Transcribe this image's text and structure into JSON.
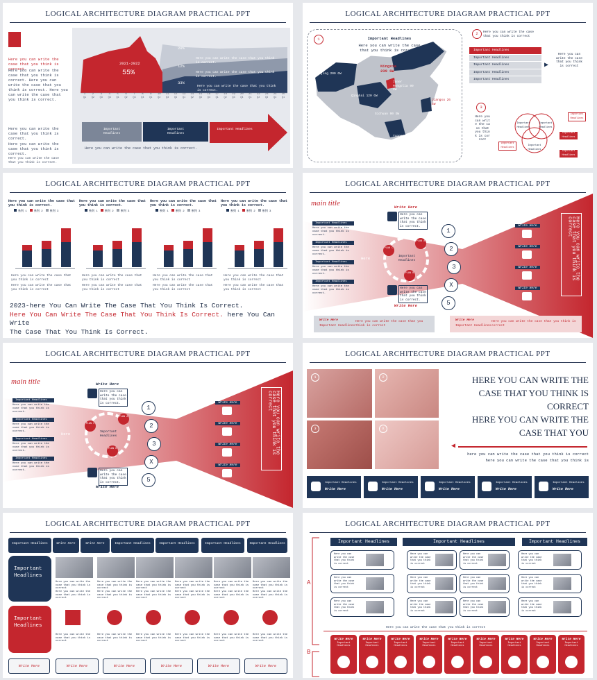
{
  "deck_title": "LOGICAL ARCHITECTURE DIAGRAM PRACTICAL PPT",
  "colors": {
    "navy": "#1f3556",
    "red": "#c4262e",
    "gray": "#9aa0aa",
    "bg": "#e6e8ec"
  },
  "common": {
    "write_here": "Write Here",
    "important_headlines": "Important Headlines",
    "placeholder_short": "Here you can write the case that you think is correct.",
    "placeholder_lower": "here you can write the case that you think is correct"
  },
  "slide1": {
    "left_text_red": "Here you can write the case that you think is correct.",
    "left_text_body": "Here you can write the case that you think is correct. Here you can write the case that you think is correct. Here you can write the case that you think is correct.",
    "left_text_2": "Here you can write the case that you think is correct.",
    "left_text_3": "Here you can write the case that you think is correct.",
    "left_text_4": "Here you can write the case that you think is correct.",
    "callout_label": "2021-2022",
    "callout_value": "55%",
    "band_labels": [
      "20%",
      "12%",
      "33%"
    ],
    "band_text": "Here you can write the case that you think is correct.",
    "x_labels": [
      "1",
      "2",
      "3",
      "4",
      "5",
      "6",
      "7",
      "8",
      "9",
      "10",
      "11",
      "12",
      "13",
      "14",
      "15",
      "16",
      "17",
      "18",
      "19",
      "20",
      "21",
      "22",
      "23",
      "24",
      "25"
    ],
    "q_labels": [
      "Q1",
      "Q2",
      "Q3",
      "Q4",
      "Q1",
      "Q2",
      "Q3",
      "Q4",
      "Q1",
      "Q2",
      "Q3",
      "Q4",
      "Q1",
      "Q2",
      "Q3",
      "Q4",
      "Q1",
      "Q2",
      "Q3",
      "Q4",
      "Q1",
      "Q2",
      "Q3",
      "Q4",
      "Q1"
    ],
    "buttons": [
      "Important Headlines",
      "Important Headlines",
      "Important Headlines"
    ],
    "footer": "Here you can write the case that you think is correct."
  },
  "slide2": {
    "map_heading": "Important Headlines",
    "map_sub": "Here you can write the case that you think is correct.",
    "num1": "1",
    "num2": "2",
    "num3": "3",
    "right_text": "Here you can write the case that you think is correct",
    "list": [
      "Important Headlines",
      "Important Headlines",
      "Important Headlines",
      "Important Headlines",
      "Important Headlines"
    ],
    "side_text": "Here you can write the case that you think is correct",
    "num3_text": "Here you can write the case that you think is correct",
    "venn_labels": [
      "Important Headlines",
      "Important Headlines",
      "Important Headlines"
    ],
    "map_cities": [
      {
        "name": "Ningxia",
        "value": "239 GW"
      },
      {
        "name": "Beijing",
        "value": "200 GW"
      },
      {
        "name": "Inner Mongolia",
        "value": "99 GW"
      },
      {
        "name": "Qinghai",
        "value": "120 GW"
      },
      {
        "name": "Jiangsu",
        "value": "26 GW"
      },
      {
        "name": "Sichuan",
        "value": "90 GW"
      },
      {
        "name": "Yunnan",
        "value": "20 GW"
      }
    ],
    "small_boxes": [
      "Important Headlines",
      "Important Headlines",
      "Important Headlines",
      "Important Headlines"
    ]
  },
  "slide3": {
    "chart_heads": [
      "Here you can write the case that you think is correct.",
      "Here you can write the case that you think is correct.",
      "Here you can write the case that you think is correct.",
      "Here you can write the case that you think is correct."
    ],
    "legend": [
      "系列 1",
      "系列 2",
      "系列 3"
    ],
    "bullets": [
      "Here you can write the case that you think is correct",
      "Here you can write the case that you think is correct"
    ],
    "line1": "2023-here You Can Write The Case That You Think Is Correct.",
    "line2_red": "Here You Can Write The Case That You Think Is Correct.",
    "line2_rest": " here You Can Write",
    "line3": "The Case That You Think Is Correct."
  },
  "slide4": {
    "main_title": "main title",
    "vertical_text": "Here you can write the case that you think is correct",
    "plans": [
      "PLAN A",
      "PLAN B",
      "PLAN C"
    ],
    "nums": [
      "1",
      "2",
      "3",
      "X",
      "5"
    ],
    "here": "Here",
    "bottom_text": "Here you can write the case that you think is correct"
  },
  "slide6": {
    "big_text_1": "HERE YOU CAN WRITE THE CASE THAT YOU THINK IS CORRECT",
    "big_text_2": "HERE YOU CAN WRITE THE CASE THAT YOU",
    "small_1": "here you can write the case that you think is correct",
    "small_2": "here you can write the case that you think is",
    "photo_nums": [
      "1",
      "2",
      "3",
      "X"
    ],
    "cards": [
      "Important Headlines",
      "Important Headlines",
      "Important Headlines",
      "Important Headlines",
      "Important Headlines"
    ]
  },
  "slide7": {
    "tabs": [
      "Important Headlines",
      "Write Here",
      "Write Here",
      "Important Headlines",
      "Important Headlines",
      "Important Headlines",
      "Important Headlines"
    ],
    "left_box_1": "Important Headlines",
    "left_box_2": "Important Headlines",
    "cell_text": "Here you can write the case that you think is correct"
  },
  "slide8": {
    "heads": [
      "Important Headlines",
      "Important Headlines",
      "Important Headlines"
    ],
    "label_a": "A",
    "label_b": "B",
    "cell_text": "Here you can write the case that you think is correct",
    "mid_text": "Here you can write the case that you think is correct"
  }
}
